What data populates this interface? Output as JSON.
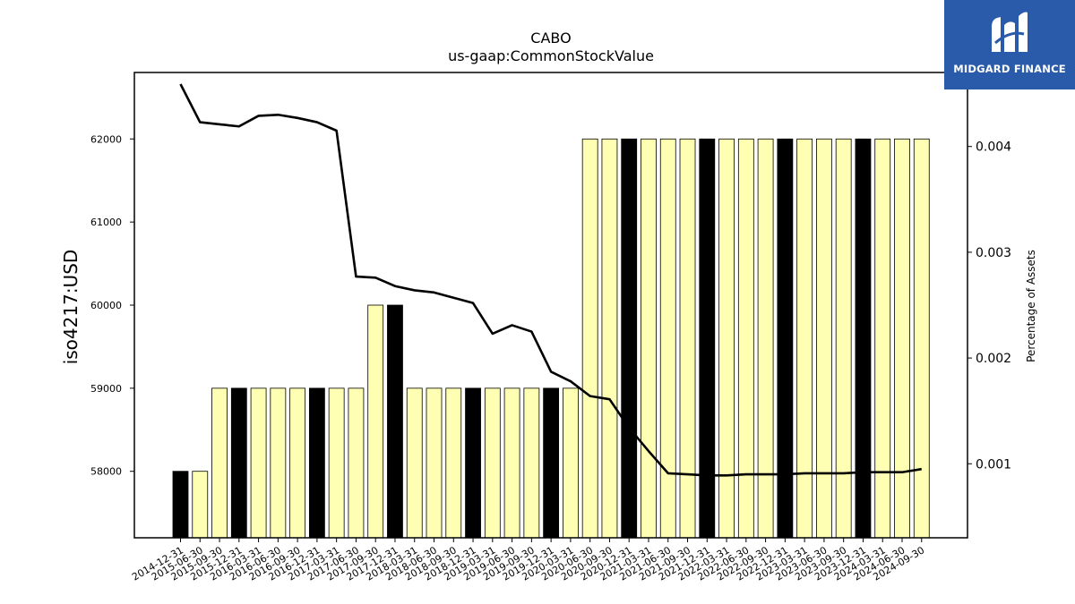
{
  "logo": {
    "text": "MIDGARD FINANCE",
    "icon": "midgard-finance-logo-icon",
    "background": "#2a5bab"
  },
  "chart_data": {
    "type": "bar",
    "title": "CABO",
    "subtitle": "us-gaap:CommonStockValue",
    "ylabel": "iso4217:USD",
    "ylabel_right": "Percentage of Assets",
    "ylim": [
      57200,
      62800
    ],
    "ylim_right": [
      0.0003,
      0.0047
    ],
    "yticks": [
      58000,
      59000,
      60000,
      61000,
      62000
    ],
    "yticks_right": [
      0.001,
      0.002,
      0.003,
      0.004
    ],
    "colors": {
      "bar_default": "#ffffb3",
      "bar_year_end": "#000000",
      "line": "#000000"
    },
    "grid": false,
    "categories": [
      "2014-12-31",
      "2015-06-30",
      "2015-09-30",
      "2015-12-31",
      "2016-03-31",
      "2016-06-30",
      "2016-09-30",
      "2016-12-31",
      "2017-03-31",
      "2017-06-30",
      "2017-09-30",
      "2017-12-31",
      "2018-03-31",
      "2018-06-30",
      "2018-09-30",
      "2018-12-31",
      "2019-03-31",
      "2019-06-30",
      "2019-09-30",
      "2019-12-31",
      "2020-03-31",
      "2020-06-30",
      "2020-09-30",
      "2020-12-31",
      "2021-03-31",
      "2021-06-30",
      "2021-09-30",
      "2021-12-31",
      "2022-03-31",
      "2022-06-30",
      "2022-09-30",
      "2022-12-31",
      "2023-03-31",
      "2023-06-30",
      "2023-09-30",
      "2023-12-31",
      "2024-03-31",
      "2024-06-30",
      "2024-09-30"
    ],
    "series": [
      {
        "type": "bar",
        "values": [
          58000,
          58000,
          59000,
          59000,
          59000,
          59000,
          59000,
          59000,
          59000,
          59000,
          60000,
          60000,
          59000,
          59000,
          59000,
          59000,
          59000,
          59000,
          59000,
          59000,
          59000,
          62000,
          62000,
          62000,
          62000,
          62000,
          62000,
          62000,
          62000,
          62000,
          62000,
          62000,
          62000,
          62000,
          62000,
          62000,
          62000,
          62000,
          62000
        ]
      },
      {
        "type": "line",
        "axis": "right",
        "values": [
          0.00459,
          0.00423,
          0.00421,
          0.00419,
          0.00429,
          0.0043,
          0.00427,
          0.00423,
          0.00415,
          0.00277,
          0.00276,
          0.00268,
          0.00264,
          0.00262,
          0.00257,
          0.00252,
          0.00223,
          0.00231,
          0.00225,
          0.00187,
          0.00178,
          0.00164,
          0.00161,
          0.00134,
          0.00112,
          0.00091,
          0.0009,
          0.00089,
          0.00089,
          0.0009,
          0.0009,
          0.0009,
          0.00091,
          0.00091,
          0.00091,
          0.00092,
          0.00092,
          0.00092,
          0.00095
        ]
      }
    ]
  }
}
